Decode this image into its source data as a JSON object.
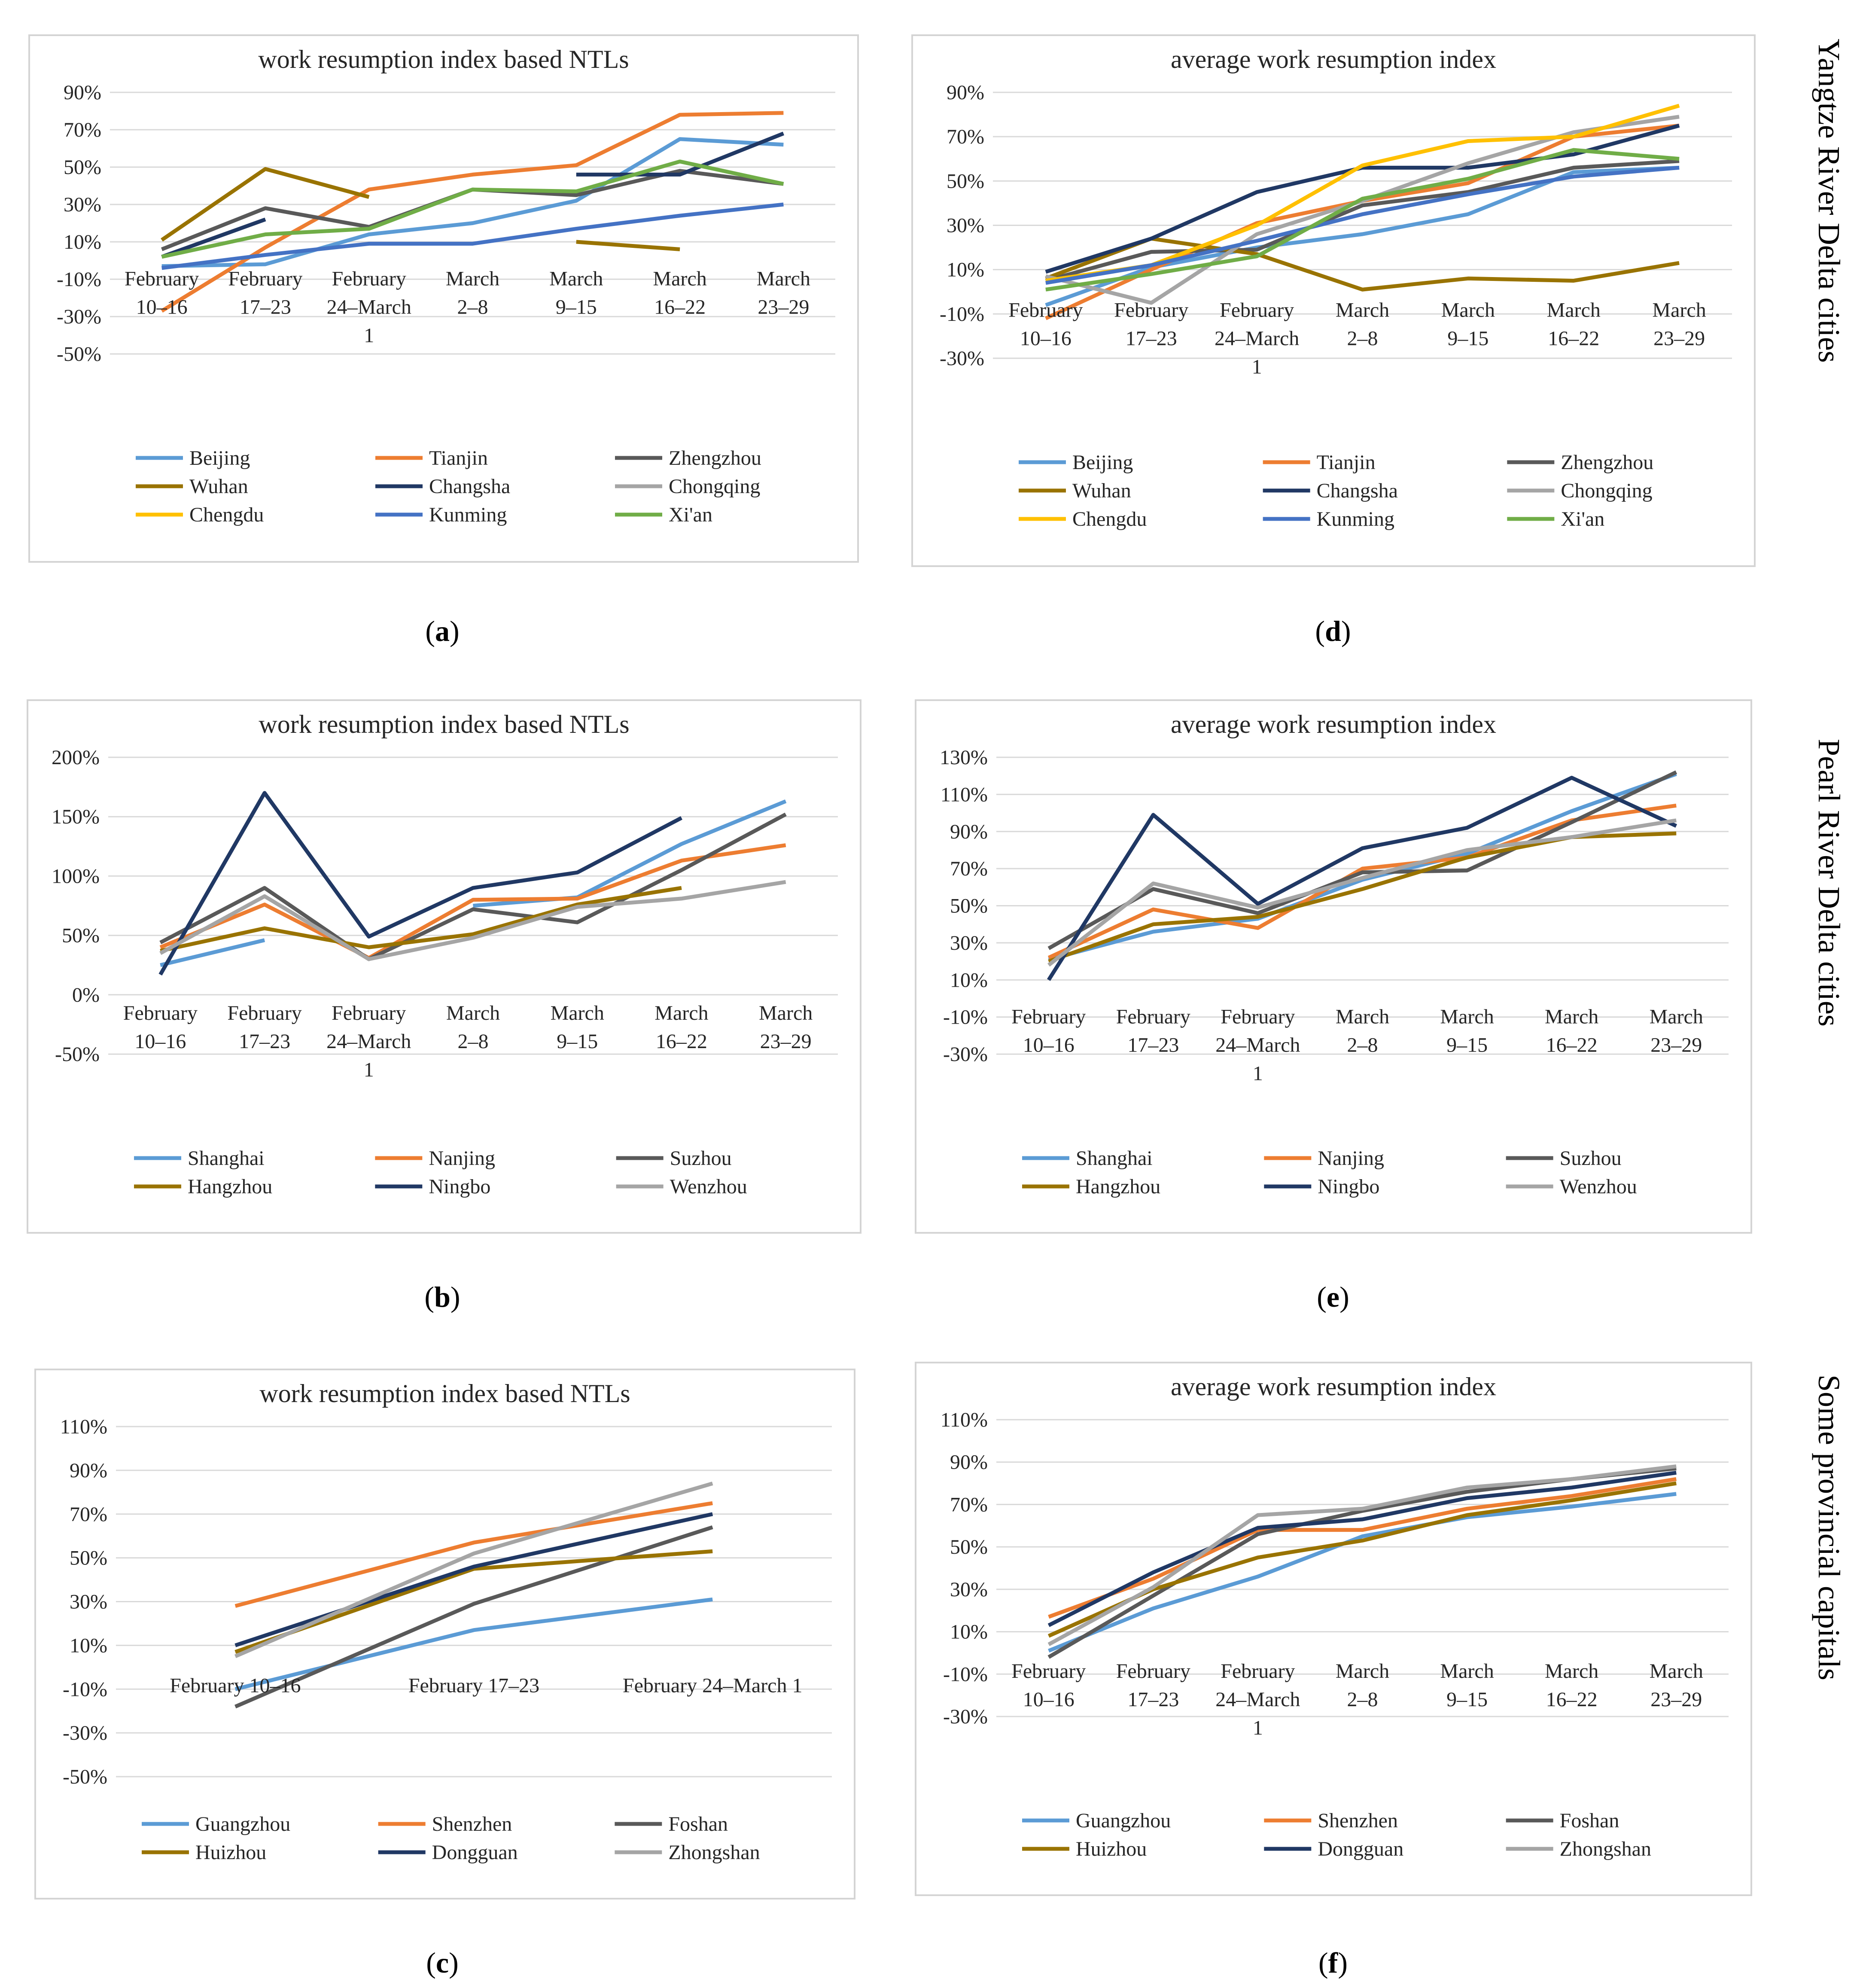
{
  "colors": {
    "c1": "#5B9BD5",
    "c2": "#ED7D31",
    "c3": "#595959",
    "c4": "#997300",
    "c5": "#203864",
    "c6": "#A5A5A5",
    "c7": "#FFC000",
    "c8": "#4472C4",
    "c9": "#70AD47"
  },
  "side_labels": [
    "Yangtze River Delta cities",
    "Pearl River Delta cities",
    "Some provincial capitals"
  ],
  "panel_labels": [
    "a",
    "d",
    "b",
    "e",
    "c",
    "f"
  ],
  "chart_data": [
    {
      "id": "a",
      "type": "line",
      "title": "work resumption index based NTLs",
      "ylim": [
        -50,
        90
      ],
      "ystep": 20,
      "yticks": [
        "90%",
        "70%",
        "50%",
        "30%",
        "10%",
        "-10%",
        "-30%",
        "-50%"
      ],
      "categories": [
        [
          "February",
          "10–16"
        ],
        [
          "February",
          "17–23"
        ],
        [
          "February",
          "24–March",
          "1"
        ],
        [
          "March",
          "2–8"
        ],
        [
          "March",
          "9–15"
        ],
        [
          "March",
          "16–22"
        ],
        [
          "March",
          "23–29"
        ]
      ],
      "series": [
        {
          "name": "Beijing",
          "color": "#5B9BD5",
          "values": [
            -3,
            -2,
            14,
            20,
            32,
            65,
            62
          ]
        },
        {
          "name": "Tianjin",
          "color": "#ED7D31",
          "values": [
            -27,
            7,
            38,
            46,
            51,
            78,
            79
          ]
        },
        {
          "name": "Zhengzhou",
          "color": "#595959",
          "values": [
            6,
            28,
            18,
            38,
            35,
            48,
            41
          ]
        },
        {
          "name": "Wuhan",
          "color": "#997300",
          "values": [
            11,
            49,
            34,
            null,
            10,
            6,
            null
          ]
        },
        {
          "name": "Changsha",
          "color": "#203864",
          "values": [
            2,
            22,
            null,
            null,
            46,
            46,
            68
          ]
        },
        {
          "name": "Chongqing",
          "color": "#A5A5A5",
          "values": [
            null,
            null,
            null,
            null,
            null,
            null,
            null
          ]
        },
        {
          "name": "Chengdu",
          "color": "#FFC000",
          "values": [
            null,
            null,
            null,
            null,
            null,
            null,
            null
          ]
        },
        {
          "name": "Kunming",
          "color": "#4472C4",
          "values": [
            -4,
            3,
            9,
            9,
            17,
            24,
            30
          ]
        },
        {
          "name": "Xi'an",
          "color": "#70AD47",
          "values": [
            2,
            14,
            17,
            38,
            37,
            53,
            41
          ]
        }
      ]
    },
    {
      "id": "d",
      "type": "line",
      "title": "average  work resumption index",
      "ylim": [
        -30,
        90
      ],
      "ystep": 20,
      "yticks": [
        "90%",
        "70%",
        "50%",
        "30%",
        "10%",
        "-10%",
        "-30%"
      ],
      "categories": [
        [
          "February",
          "10–16"
        ],
        [
          "February",
          "17–23"
        ],
        [
          "February",
          "24–March",
          "1"
        ],
        [
          "March",
          "2–8"
        ],
        [
          "March",
          "9–15"
        ],
        [
          "March",
          "16–22"
        ],
        [
          "March",
          "23–29"
        ]
      ],
      "series": [
        {
          "name": "Beijing",
          "color": "#5B9BD5",
          "values": [
            -6,
            11,
            20,
            26,
            35,
            54,
            56
          ]
        },
        {
          "name": "Tianjin",
          "color": "#ED7D31",
          "values": [
            -12,
            10,
            31,
            41,
            49,
            70,
            75
          ]
        },
        {
          "name": "Zhengzhou",
          "color": "#595959",
          "values": [
            5,
            18,
            19,
            39,
            45,
            56,
            59
          ]
        },
        {
          "name": "Wuhan",
          "color": "#997300",
          "values": [
            6,
            24,
            17,
            1,
            6,
            5,
            13
          ]
        },
        {
          "name": "Changsha",
          "color": "#203864",
          "values": [
            9,
            24,
            45,
            56,
            56,
            62,
            75
          ]
        },
        {
          "name": "Chongqing",
          "color": "#A5A5A5",
          "values": [
            7,
            -5,
            26,
            41,
            58,
            72,
            79
          ]
        },
        {
          "name": "Chengdu",
          "color": "#FFC000",
          "values": [
            5,
            12,
            30,
            57,
            68,
            70,
            84
          ]
        },
        {
          "name": "Kunming",
          "color": "#4472C4",
          "values": [
            4,
            12,
            23,
            35,
            44,
            52,
            56
          ]
        },
        {
          "name": "Xi'an",
          "color": "#70AD47",
          "values": [
            1,
            8,
            16,
            42,
            51,
            64,
            60
          ]
        }
      ]
    },
    {
      "id": "b",
      "type": "line",
      "title": "work resumption index based NTLs",
      "ylim": [
        -50,
        200
      ],
      "ystep": 50,
      "yticks": [
        "200%",
        "150%",
        "100%",
        "50%",
        "0%",
        "-50%"
      ],
      "categories": [
        [
          "February",
          "10–16"
        ],
        [
          "February",
          "17–23"
        ],
        [
          "February",
          "24–March",
          "1"
        ],
        [
          "March",
          "2–8"
        ],
        [
          "March",
          "9–15"
        ],
        [
          "March",
          "16–22"
        ],
        [
          "March",
          "23–29"
        ]
      ],
      "series": [
        {
          "name": "Shanghai",
          "color": "#5B9BD5",
          "values": [
            25,
            46,
            null,
            75,
            82,
            127,
            163
          ]
        },
        {
          "name": "Nanjing",
          "color": "#ED7D31",
          "values": [
            40,
            76,
            31,
            80,
            81,
            113,
            126
          ]
        },
        {
          "name": "Suzhou",
          "color": "#595959",
          "values": [
            44,
            90,
            30,
            72,
            61,
            105,
            152
          ]
        },
        {
          "name": "Hangzhou",
          "color": "#997300",
          "values": [
            37,
            56,
            40,
            51,
            76,
            90,
            null
          ]
        },
        {
          "name": "Ningbo",
          "color": "#203864",
          "values": [
            17,
            170,
            49,
            90,
            103,
            149,
            null
          ]
        },
        {
          "name": "Wenzhou",
          "color": "#A5A5A5",
          "values": [
            35,
            83,
            30,
            48,
            74,
            81,
            95
          ]
        }
      ]
    },
    {
      "id": "e",
      "type": "line",
      "title": "average  work resumption index",
      "ylim": [
        -30,
        130
      ],
      "ystep": 20,
      "yticks": [
        "130%",
        "110%",
        "90%",
        "70%",
        "50%",
        "30%",
        "10%",
        "-10%",
        "-30%"
      ],
      "categories": [
        [
          "February",
          "10–16"
        ],
        [
          "February",
          "17–23"
        ],
        [
          "February",
          "24–March",
          "1"
        ],
        [
          "March",
          "2–8"
        ],
        [
          "March",
          "9–15"
        ],
        [
          "March",
          "16–22"
        ],
        [
          "March",
          "23–29"
        ]
      ],
      "series": [
        {
          "name": "Shanghai",
          "color": "#5B9BD5",
          "values": [
            21,
            36,
            43,
            64,
            78,
            101,
            121
          ]
        },
        {
          "name": "Nanjing",
          "color": "#ED7D31",
          "values": [
            22,
            48,
            38,
            70,
            76,
            96,
            104
          ]
        },
        {
          "name": "Suzhou",
          "color": "#595959",
          "values": [
            27,
            59,
            46,
            68,
            69,
            95,
            122
          ]
        },
        {
          "name": "Hangzhou",
          "color": "#997300",
          "values": [
            20,
            40,
            44,
            59,
            76,
            87,
            89
          ]
        },
        {
          "name": "Ningbo",
          "color": "#203864",
          "values": [
            10,
            99,
            51,
            81,
            92,
            119,
            93
          ]
        },
        {
          "name": "Wenzhou",
          "color": "#A5A5A5",
          "values": [
            18,
            62,
            49,
            65,
            80,
            87,
            96
          ]
        }
      ]
    },
    {
      "id": "c",
      "type": "line",
      "title": "work resumption index based NTLs",
      "ylim": [
        -50,
        110
      ],
      "ystep": 20,
      "yticks": [
        "110%",
        "90%",
        "70%",
        "50%",
        "30%",
        "10%",
        "-10%",
        "-30%",
        "-50%"
      ],
      "categories": [
        [
          "February 10–16"
        ],
        [
          "February 17–23"
        ],
        [
          "February 24–March  1"
        ]
      ],
      "series": [
        {
          "name": "Guangzhou",
          "color": "#5B9BD5",
          "values": [
            -10,
            17,
            31
          ]
        },
        {
          "name": "Shenzhen",
          "color": "#ED7D31",
          "values": [
            28,
            57,
            75
          ]
        },
        {
          "name": "Foshan",
          "color": "#595959",
          "values": [
            -18,
            29,
            64
          ]
        },
        {
          "name": "Huizhou",
          "color": "#997300",
          "values": [
            7,
            45,
            53
          ]
        },
        {
          "name": "Dongguan",
          "color": "#203864",
          "values": [
            10,
            46,
            70
          ]
        },
        {
          "name": "Zhongshan",
          "color": "#A5A5A5",
          "values": [
            5,
            52,
            84
          ]
        }
      ]
    },
    {
      "id": "f",
      "type": "line",
      "title": "average  work resumption index",
      "ylim": [
        -30,
        110
      ],
      "ystep": 20,
      "yticks": [
        "110%",
        "90%",
        "70%",
        "50%",
        "30%",
        "10%",
        "-10%",
        "-30%"
      ],
      "categories": [
        [
          "February",
          "10–16"
        ],
        [
          "February",
          "17–23"
        ],
        [
          "February",
          "24–March",
          "1"
        ],
        [
          "March",
          "2–8"
        ],
        [
          "March",
          "9–15"
        ],
        [
          "March",
          "16–22"
        ],
        [
          "March",
          "23–29"
        ]
      ],
      "series": [
        {
          "name": "Guangzhou",
          "color": "#5B9BD5",
          "values": [
            1,
            21,
            36,
            55,
            64,
            69,
            75
          ]
        },
        {
          "name": "Shenzhen",
          "color": "#ED7D31",
          "values": [
            17,
            35,
            58,
            58,
            68,
            74,
            82
          ]
        },
        {
          "name": "Foshan",
          "color": "#595959",
          "values": [
            -2,
            27,
            56,
            67,
            76,
            82,
            87
          ]
        },
        {
          "name": "Huizhou",
          "color": "#997300",
          "values": [
            8,
            30,
            45,
            53,
            65,
            72,
            80
          ]
        },
        {
          "name": "Dongguan",
          "color": "#203864",
          "values": [
            13,
            38,
            59,
            63,
            73,
            78,
            85
          ]
        },
        {
          "name": "Zhongshan",
          "color": "#A5A5A5",
          "values": [
            4,
            31,
            65,
            68,
            78,
            82,
            88
          ]
        }
      ]
    }
  ]
}
